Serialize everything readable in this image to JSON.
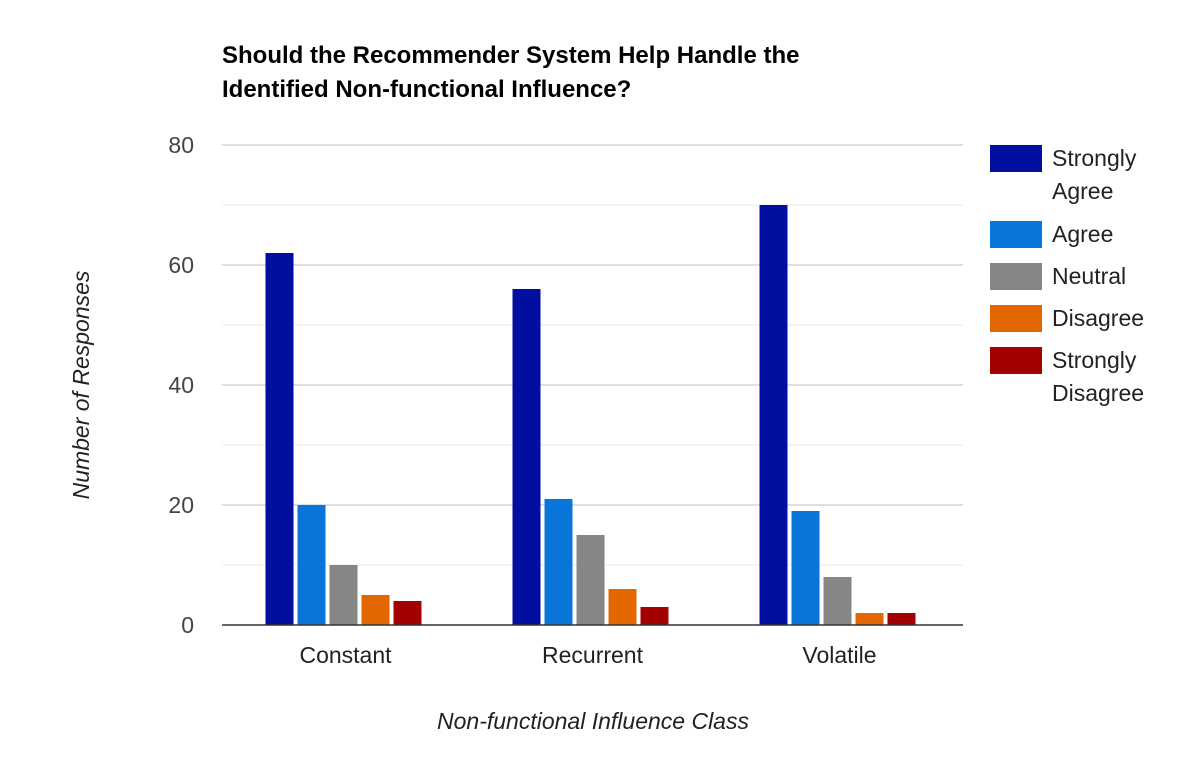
{
  "chart_data": {
    "type": "bar",
    "title_lines": [
      "Should the Recommender System Help Handle the",
      "Identified Non-functional Influence?"
    ],
    "xlabel": "Non-functional Influence Class",
    "ylabel": "Number of Responses",
    "categories": [
      "Constant",
      "Recurrent",
      "Volatile"
    ],
    "ylim": [
      0,
      80
    ],
    "yticks": [
      0,
      20,
      40,
      60,
      80
    ],
    "grid": true,
    "legend_position": "right",
    "series": [
      {
        "name": "Strongly Agree",
        "name_lines": [
          "Strongly",
          "Agree"
        ],
        "color": "#000f9f",
        "values": [
          62,
          56,
          70
        ]
      },
      {
        "name": "Agree",
        "name_lines": [
          "Agree"
        ],
        "color": "#0a75d9",
        "values": [
          20,
          21,
          19
        ]
      },
      {
        "name": "Neutral",
        "name_lines": [
          "Neutral"
        ],
        "color": "#868686",
        "values": [
          10,
          15,
          8
        ]
      },
      {
        "name": "Disagree",
        "name_lines": [
          "Disagree"
        ],
        "color": "#e36700",
        "values": [
          5,
          6,
          2
        ]
      },
      {
        "name": "Strongly Disagree",
        "name_lines": [
          "Strongly",
          "Disagree"
        ],
        "color": "#a30000",
        "values": [
          4,
          3,
          2
        ]
      }
    ]
  }
}
